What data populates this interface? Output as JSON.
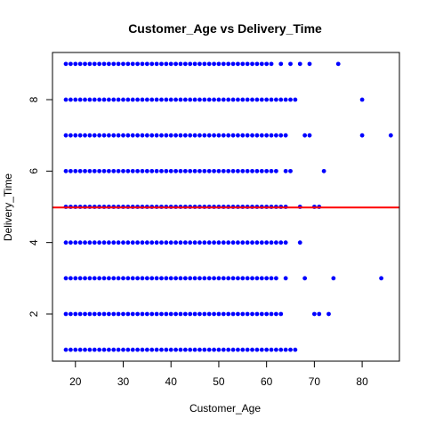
{
  "chart_data": {
    "type": "scatter",
    "title": "Customer_Age vs Delivery_Time",
    "xlabel": "Customer_Age",
    "ylabel": "Delivery_Time",
    "xlim": [
      15.2,
      87.8
    ],
    "ylim": [
      0.68,
      9.32
    ],
    "xticks": [
      20,
      30,
      40,
      50,
      60,
      70,
      80
    ],
    "yticks": [
      2,
      4,
      6,
      8
    ],
    "grid": false,
    "legend": "none",
    "point_color": "#0000FF",
    "reference_line": {
      "orientation": "horizontal",
      "y": 4.98,
      "color": "#FF0000"
    },
    "series": [
      {
        "points": [
          {
            "y": 9,
            "ages": [
              18,
              19,
              20,
              21,
              22,
              23,
              24,
              25,
              26,
              27,
              28,
              29,
              30,
              31,
              32,
              33,
              34,
              35,
              36,
              37,
              38,
              39,
              40,
              41,
              42,
              43,
              44,
              45,
              46,
              47,
              48,
              49,
              50,
              51,
              52,
              53,
              54,
              55,
              56,
              57,
              58,
              59,
              60,
              61,
              63,
              65,
              67,
              69,
              75
            ]
          },
          {
            "y": 8,
            "ages": [
              18,
              19,
              20,
              21,
              22,
              23,
              24,
              25,
              26,
              27,
              28,
              29,
              30,
              31,
              32,
              33,
              34,
              35,
              36,
              37,
              38,
              39,
              40,
              41,
              42,
              43,
              44,
              45,
              46,
              47,
              48,
              49,
              50,
              51,
              52,
              53,
              54,
              55,
              56,
              57,
              58,
              59,
              60,
              61,
              62,
              63,
              64,
              65,
              66,
              80
            ]
          },
          {
            "y": 7,
            "ages": [
              18,
              19,
              20,
              21,
              22,
              23,
              24,
              25,
              26,
              27,
              28,
              29,
              30,
              31,
              32,
              33,
              34,
              35,
              36,
              37,
              38,
              39,
              40,
              41,
              42,
              43,
              44,
              45,
              46,
              47,
              48,
              49,
              50,
              51,
              52,
              53,
              54,
              55,
              56,
              57,
              58,
              59,
              60,
              61,
              62,
              63,
              64,
              68,
              69,
              80,
              86
            ]
          },
          {
            "y": 6,
            "ages": [
              18,
              19,
              20,
              21,
              22,
              23,
              24,
              25,
              26,
              27,
              28,
              29,
              30,
              31,
              32,
              33,
              34,
              35,
              36,
              37,
              38,
              39,
              40,
              41,
              42,
              43,
              44,
              45,
              46,
              47,
              48,
              49,
              50,
              51,
              52,
              53,
              54,
              55,
              56,
              57,
              58,
              59,
              60,
              61,
              62,
              64,
              65,
              72
            ]
          },
          {
            "y": 5,
            "ages": [
              18,
              19,
              20,
              21,
              22,
              23,
              24,
              25,
              26,
              27,
              28,
              29,
              30,
              31,
              32,
              33,
              34,
              35,
              36,
              37,
              38,
              39,
              40,
              41,
              42,
              43,
              44,
              45,
              46,
              47,
              48,
              49,
              50,
              51,
              52,
              53,
              54,
              55,
              56,
              57,
              58,
              59,
              60,
              61,
              62,
              63,
              64,
              67,
              70,
              71
            ]
          },
          {
            "y": 4,
            "ages": [
              18,
              19,
              20,
              21,
              22,
              23,
              24,
              25,
              26,
              27,
              28,
              29,
              30,
              31,
              32,
              33,
              34,
              35,
              36,
              37,
              38,
              39,
              40,
              41,
              42,
              43,
              44,
              45,
              46,
              47,
              48,
              49,
              50,
              51,
              52,
              53,
              54,
              55,
              56,
              57,
              58,
              59,
              60,
              61,
              62,
              63,
              64,
              67
            ]
          },
          {
            "y": 3,
            "ages": [
              18,
              19,
              20,
              21,
              22,
              23,
              24,
              25,
              26,
              27,
              28,
              29,
              30,
              31,
              32,
              33,
              34,
              35,
              36,
              37,
              38,
              39,
              40,
              41,
              42,
              43,
              44,
              45,
              46,
              47,
              48,
              49,
              50,
              51,
              52,
              53,
              54,
              55,
              56,
              57,
              58,
              59,
              60,
              61,
              62,
              64,
              68,
              74,
              84
            ]
          },
          {
            "y": 2,
            "ages": [
              18,
              19,
              20,
              21,
              22,
              23,
              24,
              25,
              26,
              27,
              28,
              29,
              30,
              31,
              32,
              33,
              34,
              35,
              36,
              37,
              38,
              39,
              40,
              41,
              42,
              43,
              44,
              45,
              46,
              47,
              48,
              49,
              50,
              51,
              52,
              53,
              54,
              55,
              56,
              57,
              58,
              59,
              60,
              61,
              62,
              63,
              70,
              71,
              73
            ]
          },
          {
            "y": 1,
            "ages": [
              18,
              19,
              20,
              21,
              22,
              23,
              24,
              25,
              26,
              27,
              28,
              29,
              30,
              31,
              32,
              33,
              34,
              35,
              36,
              37,
              38,
              39,
              40,
              41,
              42,
              43,
              44,
              45,
              46,
              47,
              48,
              49,
              50,
              51,
              52,
              53,
              54,
              55,
              56,
              57,
              58,
              59,
              60,
              61,
              62,
              63,
              64,
              65,
              66
            ]
          }
        ]
      }
    ]
  }
}
